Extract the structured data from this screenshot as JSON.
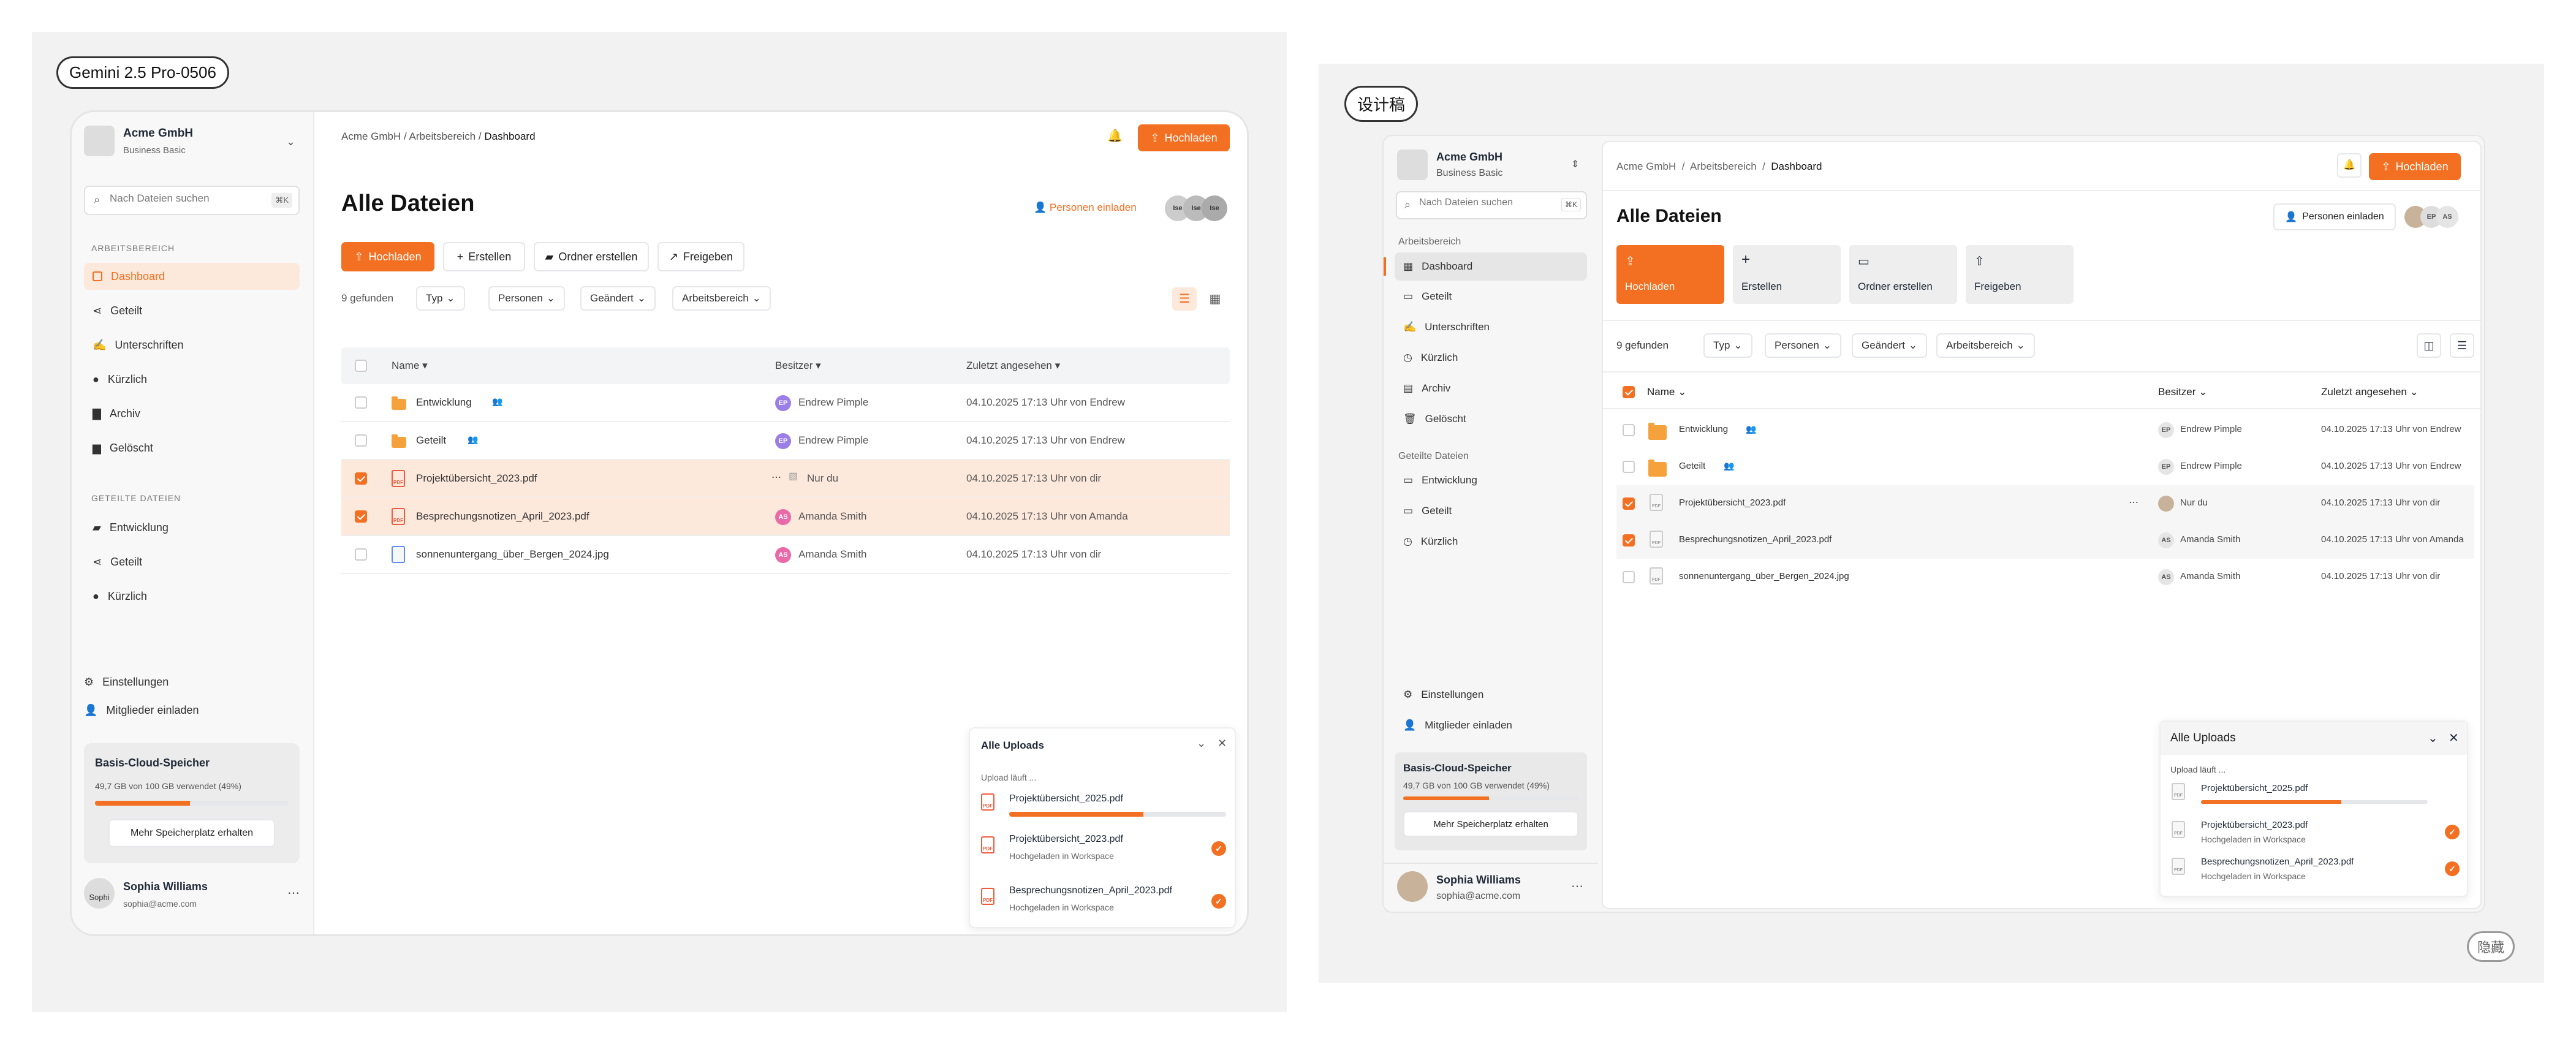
{
  "left": {
    "model_label": "Gemini 2.5 Pro-0506",
    "org": {
      "name": "Acme GmbH",
      "plan": "Business Basic"
    },
    "search": {
      "placeholder": "Nach Dateien suchen",
      "shortcut": "⌘K"
    },
    "section_workspace": "ARBEITSBEREICH",
    "nav": [
      "Dashboard",
      "Geteilt",
      "Unterschriften",
      "Kürzlich",
      "Archiv",
      "Gelöscht"
    ],
    "section_shared": "GETEILTE DATEIEN",
    "shared_nav": [
      "Entwicklung",
      "Geteilt",
      "Kürzlich"
    ],
    "settings": "Einstellungen",
    "invite_members": "Mitglieder einladen",
    "storage": {
      "title": "Basis-Cloud-Speicher",
      "usage": "49,7 GB von 100 GB verwendet (49%)",
      "percent": 49,
      "button": "Mehr Speicherplatz erhalten"
    },
    "user": {
      "name": "Sophia Williams",
      "email": "sophia@acme.com",
      "avatar_alt": "Sophi"
    },
    "breadcrumb": [
      "Acme GmbH",
      "Arbeitsbereich",
      "Dashboard"
    ],
    "upload_label": "Hochladen",
    "page_title": "Alle Dateien",
    "invite_people": "Personen einladen",
    "avatar_labels": [
      "Ise",
      "Ise",
      "Ise"
    ],
    "actions": [
      "Hochladen",
      "Erstellen",
      "Ordner erstellen",
      "Freigeben"
    ],
    "found": "9 gefunden",
    "filters": [
      "Typ",
      "Personen",
      "Geändert",
      "Arbeitsbereich"
    ],
    "columns": {
      "name": "Name",
      "owner": "Besitzer",
      "viewed": "Zuletzt angesehen"
    },
    "rows": [
      {
        "name": "Entwicklung",
        "kind": "folder",
        "owner": "Endrew Pimple",
        "owner_initials": "EP",
        "viewed": "04.10.2025 17:13 Uhr von Endrew",
        "checked": false
      },
      {
        "name": "Geteilt",
        "kind": "folder",
        "owner": "Endrew Pimple",
        "owner_initials": "EP",
        "viewed": "04.10.2025 17:13 Uhr von Endrew",
        "checked": false
      },
      {
        "name": "Projektübersicht_2023.pdf",
        "kind": "pdf",
        "owner": "Nur du",
        "owner_initials": "",
        "viewed": "04.10.2025 17:13 Uhr von dir",
        "checked": true
      },
      {
        "name": "Besprechungsnotizen_April_2023.pdf",
        "kind": "pdf",
        "owner": "Amanda Smith",
        "owner_initials": "AS",
        "viewed": "04.10.2025 17:13 Uhr von Amanda",
        "checked": true
      },
      {
        "name": "sonnenuntergang_über_Bergen_2024.jpg",
        "kind": "img",
        "owner": "Amanda Smith",
        "owner_initials": "AS",
        "viewed": "04.10.2025 17:13 Uhr von dir",
        "checked": false
      }
    ],
    "uploads": {
      "title": "Alle Uploads",
      "status": "Upload läuft ...",
      "items": [
        {
          "name": "Projektübersicht_2025.pdf",
          "sub": "",
          "progress": 0.62
        },
        {
          "name": "Projektübersicht_2023.pdf",
          "sub": "Hochgeladen in Workspace"
        },
        {
          "name": "Besprechungsnotizen_April_2023.pdf",
          "sub": "Hochgeladen in Workspace"
        }
      ]
    }
  },
  "right": {
    "design_label": "设计稿",
    "hide_label": "隐藏",
    "org": {
      "name": "Acme GmbH",
      "plan": "Business Basic"
    },
    "search": {
      "placeholder": "Nach Dateien suchen",
      "shortcut": "⌘K"
    },
    "section_workspace": "Arbeitsbereich",
    "nav": [
      "Dashboard",
      "Geteilt",
      "Unterschriften",
      "Kürzlich",
      "Archiv",
      "Gelöscht"
    ],
    "section_shared": "Geteilte Dateien",
    "shared_nav": [
      "Entwicklung",
      "Geteilt",
      "Kürzlich"
    ],
    "settings": "Einstellungen",
    "invite_members": "Mitglieder einladen",
    "storage": {
      "title": "Basis-Cloud-Speicher",
      "usage": "49,7 GB von 100 GB verwendet (49%)",
      "percent": 49,
      "button": "Mehr Speicherplatz erhalten"
    },
    "user": {
      "name": "Sophia Williams",
      "email": "sophia@acme.com"
    },
    "breadcrumb": [
      "Acme GmbH",
      "Arbeitsbereich",
      "Dashboard"
    ],
    "upload_label": "Hochladen",
    "page_title": "Alle Dateien",
    "invite_people": "Personen einladen",
    "avatar_labels": [
      "",
      "EP",
      "AS"
    ],
    "actions": [
      "Hochladen",
      "Erstellen",
      "Ordner erstellen",
      "Freigeben"
    ],
    "found": "9 gefunden",
    "filters": [
      "Typ",
      "Personen",
      "Geändert",
      "Arbeitsbereich"
    ],
    "columns": {
      "name": "Name",
      "owner": "Besitzer",
      "viewed": "Zuletzt angesehen"
    },
    "rows": [
      {
        "name": "Entwicklung",
        "kind": "folder",
        "owner": "Endrew Pimple",
        "owner_initials": "EP",
        "viewed": "04.10.2025 17:13 Uhr von Endrew",
        "checked": false
      },
      {
        "name": "Geteilt",
        "kind": "folder",
        "owner": "Endrew Pimple",
        "owner_initials": "EP",
        "viewed": "04.10.2025 17:13 Uhr von Endrew",
        "checked": false
      },
      {
        "name": "Projektübersicht_2023.pdf",
        "kind": "doc",
        "owner": "Nur du",
        "owner_initials": "",
        "viewed": "04.10.2025 17:13 Uhr von dir",
        "checked": true
      },
      {
        "name": "Besprechungsnotizen_April_2023.pdf",
        "kind": "doc",
        "owner": "Amanda Smith",
        "owner_initials": "AS",
        "viewed": "04.10.2025 17:13 Uhr von Amanda",
        "checked": true
      },
      {
        "name": "sonnenuntergang_über_Bergen_2024.jpg",
        "kind": "doc",
        "owner": "Amanda Smith",
        "owner_initials": "AS",
        "viewed": "04.10.2025 17:13 Uhr von dir",
        "checked": false
      }
    ],
    "uploads": {
      "title": "Alle Uploads",
      "status": "Upload läuft ...",
      "items": [
        {
          "name": "Projektübersicht_2025.pdf",
          "sub": "",
          "progress": 0.62
        },
        {
          "name": "Projektübersicht_2023.pdf",
          "sub": "Hochgeladen in Workspace"
        },
        {
          "name": "Besprechungsnotizen_April_2023.pdf",
          "sub": "Hochgeladen in Workspace"
        }
      ]
    }
  },
  "colors": {
    "accent": "#f36f21",
    "selected_row": "#fde9dc",
    "panel_bg": "#f2f2f2"
  }
}
